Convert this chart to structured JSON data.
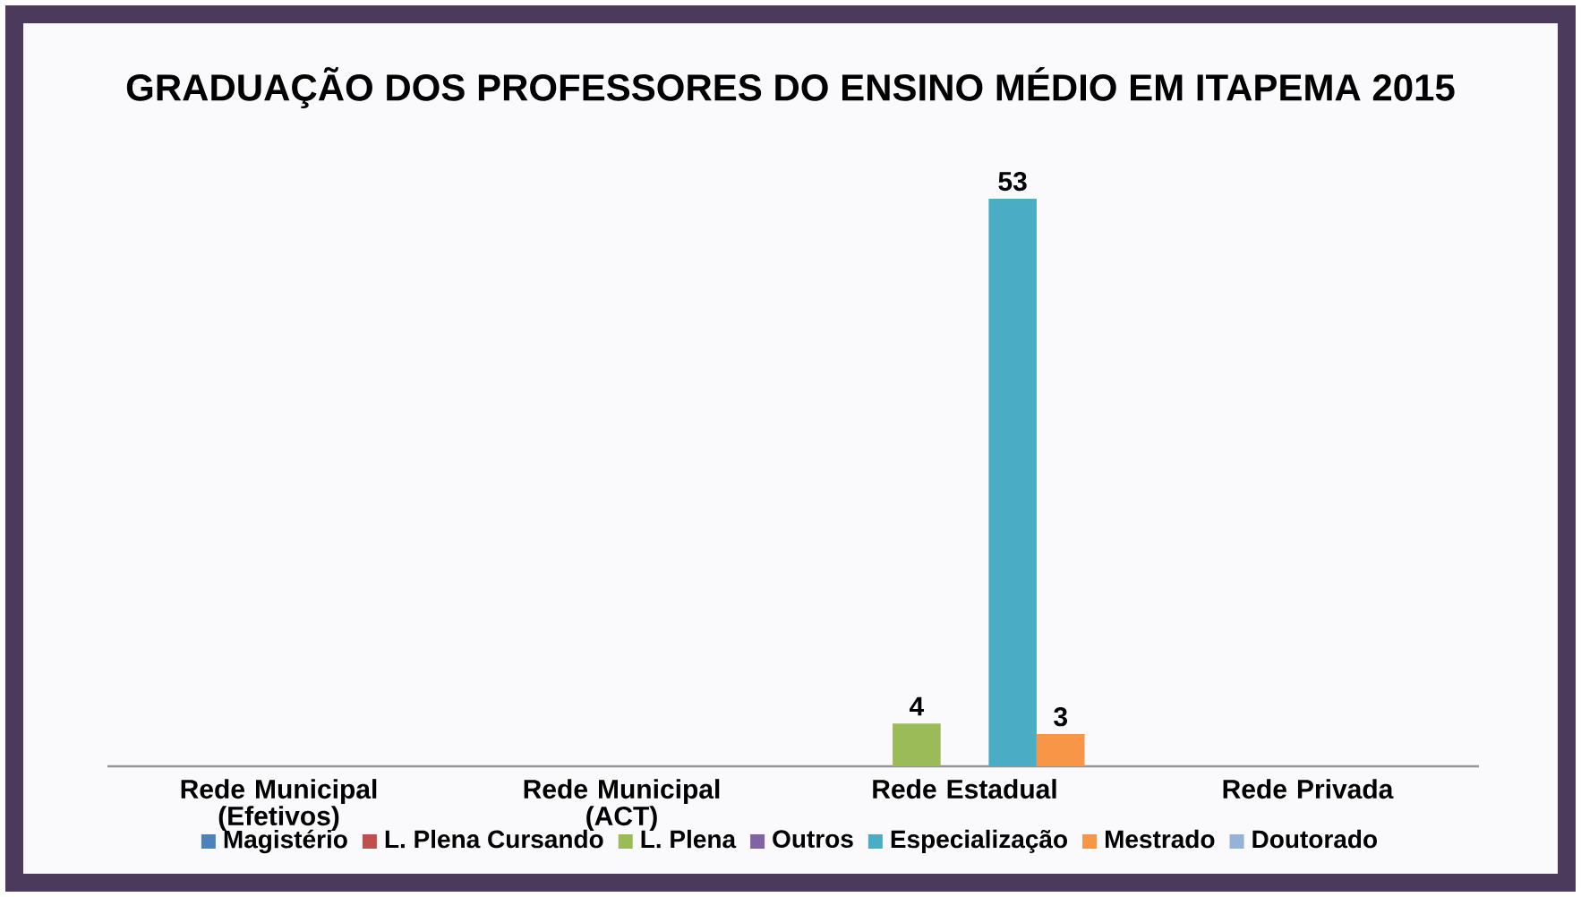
{
  "chart_data": {
    "type": "bar",
    "title": "GRADUAÇÃO DOS PROFESSORES DO ENSINO MÉDIO EM ITAPEMA 2015",
    "categories": [
      "Rede Municipal (Efetivos)",
      "Rede Municipal (ACT)",
      "Rede Estadual",
      "Rede Privada"
    ],
    "tick_labels": "x",
    "legend": "bottom",
    "series": [
      {
        "name": "Magistério",
        "color": "#4f81bd",
        "values": [
          null,
          null,
          null,
          null
        ]
      },
      {
        "name": "L. Plena Cursando",
        "color": "#c0504d",
        "values": [
          null,
          null,
          null,
          null
        ]
      },
      {
        "name": "L. Plena",
        "color": "#9bbb59",
        "values": [
          null,
          null,
          4,
          null
        ],
        "value_labels": [
          null,
          null,
          "4",
          null
        ]
      },
      {
        "name": "Outros",
        "color": "#8064a2",
        "values": [
          null,
          null,
          null,
          null
        ]
      },
      {
        "name": "Especialização",
        "color": "#4bacc6",
        "values": [
          null,
          null,
          53,
          null
        ],
        "value_labels": [
          null,
          null,
          "53",
          null
        ]
      },
      {
        "name": "Mestrado",
        "color": "#f79646",
        "values": [
          null,
          null,
          3,
          null
        ],
        "value_labels": [
          null,
          null,
          "3",
          null
        ]
      },
      {
        "name": "Doutorado",
        "color": "#95b3d7",
        "values": [
          null,
          null,
          null,
          null
        ]
      }
    ]
  }
}
